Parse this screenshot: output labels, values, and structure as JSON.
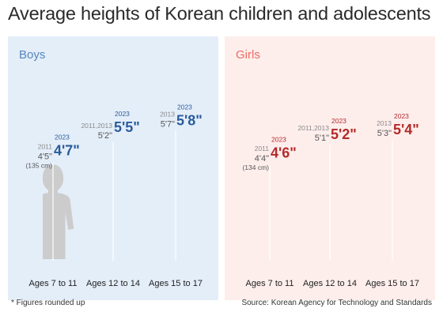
{
  "title": "Average heights of Korean children and adolescents",
  "footnote": "* Figures rounded up",
  "source": "Source: Korean Agency for Technology and Standards",
  "colors": {
    "boys": "#5585bf",
    "girls": "#eb6b62",
    "silhouette": "#cccccc",
    "boys_panel": "#e4eef9",
    "girls_panel": "#fdeeec",
    "boys_text": "#2a5c9c",
    "girls_text": "#b52a2a"
  },
  "chart_data": [
    {
      "type": "bar",
      "panel": "Boys",
      "categories": [
        "Ages 7 to 11",
        "Ages 12 to 14",
        "Ages 15 to 17"
      ],
      "series": [
        {
          "name": "",
          "years": [
            "2011",
            "2011,2013",
            "2013"
          ],
          "labels": [
            "4'5\"",
            "5'2\"",
            "5'7\""
          ],
          "values": [
            53,
            62,
            67
          ]
        },
        {
          "name": "2023",
          "years": [
            "2023",
            "2023",
            "2023"
          ],
          "labels": [
            "4'7\"",
            "5'5\"",
            "5'8\""
          ],
          "values": [
            55,
            65,
            68
          ]
        }
      ],
      "annotations": [
        "(135 cm)"
      ],
      "unit": "inches"
    },
    {
      "type": "bar",
      "panel": "Girls",
      "categories": [
        "Ages 7 to 11",
        "Ages 12 to 14",
        "Ages 15 to 17"
      ],
      "series": [
        {
          "name": "",
          "years": [
            "2011",
            "2011,2013",
            "2013"
          ],
          "labels": [
            "4'4\"",
            "5'1\"",
            "5'3\""
          ],
          "values": [
            52,
            61,
            63
          ]
        },
        {
          "name": "2023",
          "years": [
            "2023",
            "2023",
            "2023"
          ],
          "labels": [
            "4'6\"",
            "5'2\"",
            "5'4\""
          ],
          "values": [
            54,
            62,
            64
          ]
        }
      ],
      "annotations": [
        "(134 cm)"
      ],
      "unit": "inches"
    }
  ]
}
